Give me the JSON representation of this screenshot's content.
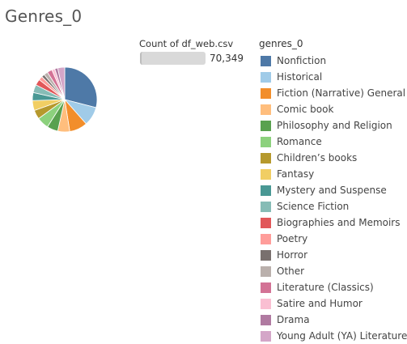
{
  "title": "Genres_0",
  "size_legend": {
    "title": "Count of df_web.csv",
    "value": "70,349"
  },
  "chart_data": {
    "type": "pie",
    "title": "Genres_0",
    "legend_title": "genres_0",
    "legend_position": "right",
    "total": 70349,
    "slices": [
      {
        "label": "Nonfiction",
        "value": 0.29,
        "color": "#4e79a7"
      },
      {
        "label": "Historical",
        "value": 0.095,
        "color": "#a0cbe8"
      },
      {
        "label": "Fiction (Narrative) General",
        "value": 0.09,
        "color": "#f28e2b"
      },
      {
        "label": "Comic book",
        "value": 0.06,
        "color": "#ffbe7d"
      },
      {
        "label": "Philosophy and Religion",
        "value": 0.055,
        "color": "#59a14f"
      },
      {
        "label": "Romance",
        "value": 0.06,
        "color": "#8cd17d"
      },
      {
        "label": "Children’s books",
        "value": 0.045,
        "color": "#b6992d"
      },
      {
        "label": "Fantasy",
        "value": 0.05,
        "color": "#f1ce63"
      },
      {
        "label": "Mystery and Suspense",
        "value": 0.04,
        "color": "#499894"
      },
      {
        "label": "Science Fiction",
        "value": 0.04,
        "color": "#86bcb6"
      },
      {
        "label": "Biographies and Memoirs",
        "value": 0.03,
        "color": "#e15759"
      },
      {
        "label": "Poetry",
        "value": 0.02,
        "color": "#ff9d9a"
      },
      {
        "label": "Horror",
        "value": 0.015,
        "color": "#79706e"
      },
      {
        "label": "Other",
        "value": 0.02,
        "color": "#bab0ac"
      },
      {
        "label": "Literature (Classics)",
        "value": 0.025,
        "color": "#d37295"
      },
      {
        "label": "Satire and Humor",
        "value": 0.015,
        "color": "#fabfd2"
      },
      {
        "label": "Drama",
        "value": 0.015,
        "color": "#b07aa1"
      },
      {
        "label": "Young Adult (YA) Literature",
        "value": 0.035,
        "color": "#d4a6c8"
      }
    ]
  }
}
